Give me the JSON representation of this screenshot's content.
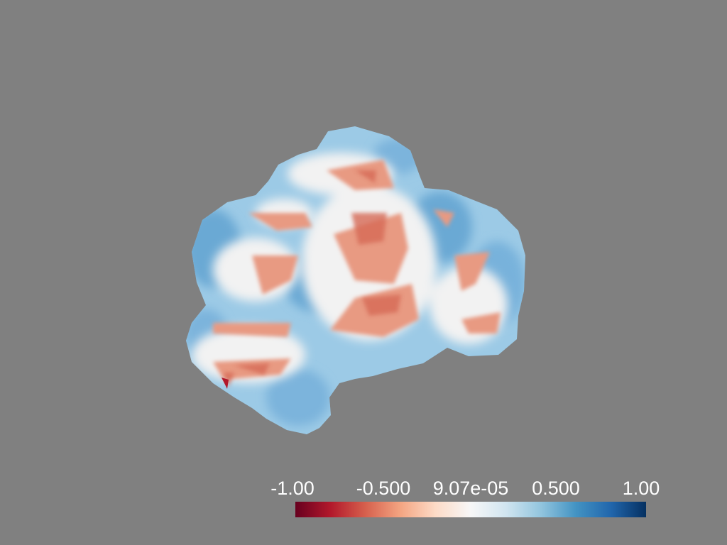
{
  "render": {
    "background_color": "#808080",
    "object": "3d-blob-surface",
    "colormap": "RdBu",
    "colormap_stops": [
      "#67001f",
      "#b2182b",
      "#d6604d",
      "#f4a582",
      "#fddbc7",
      "#f7f7f7",
      "#d1e5f0",
      "#92c5de",
      "#4393c3",
      "#2166ac",
      "#053061"
    ]
  },
  "scalar_bar": {
    "range": [
      -1.0,
      1.0
    ],
    "tick_labels": [
      "-1.00",
      "-0.500",
      "9.07e-05",
      "0.500",
      "1.00"
    ]
  }
}
